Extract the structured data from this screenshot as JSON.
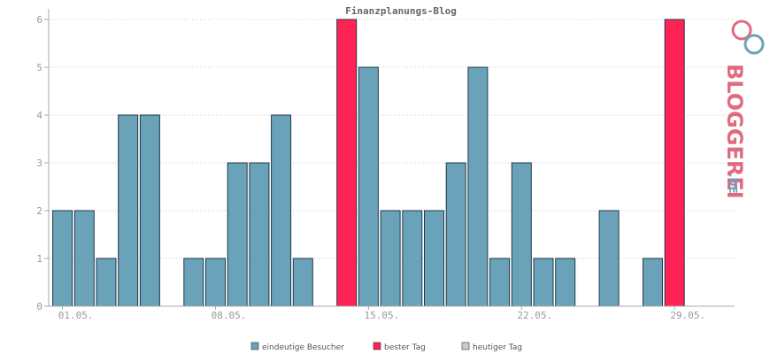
{
  "chart_data": {
    "type": "bar",
    "title": "Finanzplanungs-Blog",
    "xlabel": "",
    "ylabel": "",
    "ylim": [
      0,
      6
    ],
    "yticks": [
      "0",
      "1",
      "2",
      "3",
      "4",
      "5",
      "6"
    ],
    "grid": true,
    "legend_position": "bottom",
    "x_tick_labels": [
      {
        "day": 1,
        "label": "01.05."
      },
      {
        "day": 8,
        "label": "08.05."
      },
      {
        "day": 15,
        "label": "15.05."
      },
      {
        "day": 22,
        "label": "22.05."
      },
      {
        "day": 29,
        "label": "29.05."
      }
    ],
    "days": [
      1,
      2,
      3,
      4,
      5,
      6,
      7,
      8,
      9,
      10,
      11,
      12,
      13,
      14,
      15,
      16,
      17,
      18,
      19,
      20,
      21,
      22,
      23,
      24,
      25,
      26,
      27,
      28,
      29,
      30,
      31
    ],
    "values": [
      2,
      2,
      1,
      4,
      4,
      0,
      1,
      1,
      3,
      3,
      4,
      1,
      0,
      6,
      5,
      2,
      2,
      2,
      3,
      5,
      1,
      3,
      1,
      1,
      0,
      2,
      0,
      1,
      6,
      0,
      0
    ],
    "best_days": [
      14,
      29
    ],
    "series": [
      {
        "name": "eindeutige Besucher",
        "color": "#6aa2ba"
      },
      {
        "name": "bester Tag",
        "color": "#ff2255"
      },
      {
        "name": "heutiger Tag",
        "color": "#cccccc"
      }
    ]
  },
  "logo": {
    "text": "BLOGGEREI",
    "suffix": ".DE"
  }
}
